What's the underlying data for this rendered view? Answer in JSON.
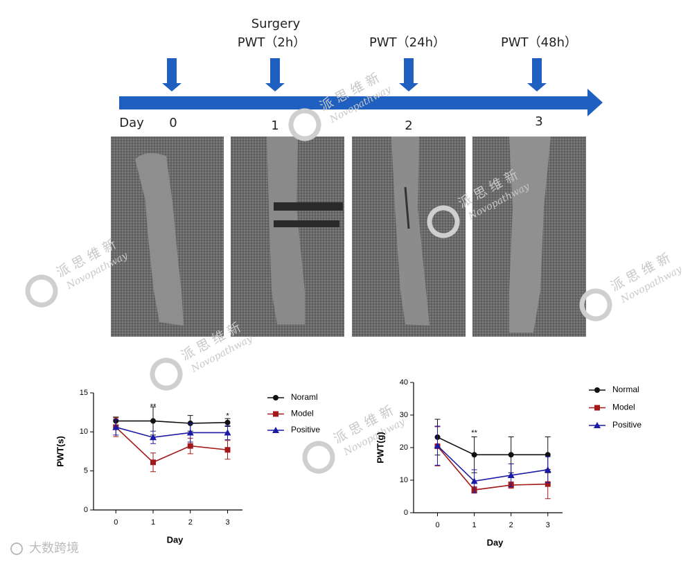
{
  "timeline": {
    "axis_label": "Day",
    "steps": [
      {
        "day": "0"
      },
      {
        "day": "1",
        "event": "Surgery",
        "label": "PWT（2h）"
      },
      {
        "day": "2",
        "label": "PWT（24h）"
      },
      {
        "day": "3",
        "label": "PWT（48h）"
      }
    ]
  },
  "watermark": {
    "brand_cn": "派 思 维 新",
    "brand_en": "Novopathway",
    "source": "大数跨境"
  },
  "chart_data": [
    {
      "type": "line",
      "ylabel": "PWT(s)",
      "xlabel": "Day",
      "xlim": [
        -0.6,
        3.4
      ],
      "xticks": [
        0,
        1,
        2,
        3
      ],
      "ylim": [
        0,
        15
      ],
      "yticks": [
        0,
        5,
        10,
        15
      ],
      "series": [
        {
          "name": "Noraml",
          "color": "#111111",
          "marker": "circle",
          "x": [
            0,
            1,
            2,
            3
          ],
          "values": [
            11.4,
            11.4,
            11.1,
            11.2
          ],
          "errors": [
            0.5,
            1.8,
            1.0,
            0.5
          ]
        },
        {
          "name": "Model",
          "color": "#a31818",
          "marker": "square",
          "x": [
            0,
            1,
            2,
            3
          ],
          "values": [
            10.6,
            6.1,
            8.2,
            7.7
          ],
          "errors": [
            1.2,
            1.2,
            1.0,
            1.2
          ]
        },
        {
          "name": "Positive",
          "color": "#1a1aa6",
          "marker": "triangle",
          "x": [
            0,
            1,
            2,
            3
          ],
          "values": [
            10.6,
            9.3,
            9.9,
            9.9
          ],
          "errors": [
            1.0,
            0.8,
            1.2,
            0.9
          ]
        }
      ],
      "annotations": [
        {
          "text": "**",
          "x": 1,
          "y": 13.2
        },
        {
          "text": "*",
          "x": 3,
          "y": 12.0
        }
      ]
    },
    {
      "type": "line",
      "ylabel": "PWT(g)",
      "xlabel": "Day",
      "xlim": [
        -0.65,
        3.4
      ],
      "xticks": [
        0,
        1,
        2,
        3
      ],
      "ylim": [
        0,
        40
      ],
      "yticks": [
        0,
        10,
        20,
        30,
        40
      ],
      "series": [
        {
          "name": "Normal",
          "color": "#111111",
          "marker": "circle",
          "x": [
            0,
            1,
            2,
            3
          ],
          "values": [
            23.2,
            17.8,
            17.8,
            17.8
          ],
          "errors": [
            5.5,
            5.5,
            5.5,
            5.5
          ]
        },
        {
          "name": "Model",
          "color": "#a31818",
          "marker": "square",
          "x": [
            0,
            1,
            2,
            3
          ],
          "values": [
            20.4,
            7.0,
            8.5,
            8.8
          ],
          "errors": [
            6.0,
            1.0,
            1.0,
            4.5
          ]
        },
        {
          "name": "Positive",
          "color": "#1a1aa6",
          "marker": "triangle",
          "x": [
            0,
            1,
            2,
            3
          ],
          "values": [
            20.6,
            9.7,
            11.5,
            13.2
          ],
          "errors": [
            6.0,
            3.5,
            3.5,
            4.0
          ]
        }
      ],
      "annotations": [
        {
          "text": "**",
          "x": 1,
          "y": 24.5
        }
      ]
    }
  ]
}
